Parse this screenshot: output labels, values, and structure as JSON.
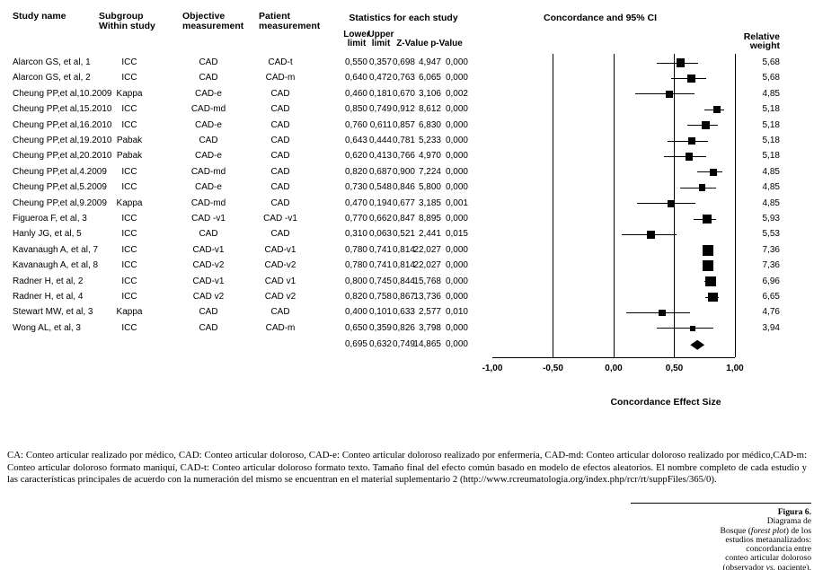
{
  "colors": {
    "ink": "#000000",
    "marker": "#000000",
    "background": "#ffffff"
  },
  "columns": {
    "study": "Study name",
    "subgroup": [
      "Subgroup",
      "Within study"
    ],
    "objective": [
      "Objective",
      "measurement"
    ],
    "patient": [
      "Patient",
      "measurement"
    ],
    "stats_group": "Statistics for each study",
    "weight": [
      "Relative",
      "weight"
    ],
    "stat_headers": [
      {
        "l1": "Lower",
        "l2": "limit"
      },
      {
        "l1": "Upper",
        "l2": "limit"
      },
      {
        "l2": "Z-Value"
      },
      {
        "l2": "p-Value"
      }
    ]
  },
  "chart_data": {
    "type": "forest",
    "title": "Concordance and 95% CI",
    "xlabel": "Concordance Effect Size",
    "xlim": [
      -1.0,
      1.0
    ],
    "xticks": [
      -1.0,
      -0.5,
      0.0,
      0.5,
      1.0
    ],
    "xtick_labels": [
      "-1,00",
      "-0,50",
      "0,00",
      "0,50",
      "1,00"
    ],
    "gridlines": [
      -0.5,
      0.0,
      0.5,
      1.0
    ],
    "grid": true,
    "studies": [
      {
        "name": "Alarcon GS, et al, 1",
        "subgroup": "ICC",
        "objective": "CAD",
        "patient": "CAD-t",
        "point": 0.55,
        "lower": 0.357,
        "upper": 0.698,
        "z": 4.947,
        "p": 0.0,
        "weight": 5.68
      },
      {
        "name": "Alarcon GS, et al, 2",
        "subgroup": "ICC",
        "objective": "CAD",
        "patient": "CAD-m",
        "point": 0.64,
        "lower": 0.472,
        "upper": 0.763,
        "z": 6.065,
        "p": 0.0,
        "weight": 5.68
      },
      {
        "name": "Cheung PP,et al,10.2009",
        "subgroup": "Kappa",
        "objective": "CAD-e",
        "patient": "CAD",
        "point": 0.46,
        "lower": 0.181,
        "upper": 0.67,
        "z": 3.106,
        "p": 0.002,
        "weight": 4.85
      },
      {
        "name": "Cheung PP,et al,15.2010",
        "subgroup": "ICC",
        "objective": "CAD-md",
        "patient": "CAD",
        "point": 0.85,
        "lower": 0.749,
        "upper": 0.912,
        "z": 8.612,
        "p": 0.0,
        "weight": 5.18
      },
      {
        "name": "Cheung PP,et al,16.2010",
        "subgroup": "ICC",
        "objective": "CAD-e",
        "patient": "CAD",
        "point": 0.76,
        "lower": 0.611,
        "upper": 0.857,
        "z": 6.83,
        "p": 0.0,
        "weight": 5.18
      },
      {
        "name": "Cheung PP,et al,19.2010",
        "subgroup": "Pabak",
        "objective": "CAD",
        "patient": "CAD",
        "point": 0.643,
        "lower": 0.444,
        "upper": 0.781,
        "z": 5.233,
        "p": 0.0,
        "weight": 5.18
      },
      {
        "name": "Cheung PP,et al,20.2010",
        "subgroup": "Pabak",
        "objective": "CAD-e",
        "patient": "CAD",
        "point": 0.62,
        "lower": 0.413,
        "upper": 0.766,
        "z": 4.97,
        "p": 0.0,
        "weight": 5.18
      },
      {
        "name": "Cheung PP,et al,4.2009",
        "subgroup": "ICC",
        "objective": "CAD-md",
        "patient": "CAD",
        "point": 0.82,
        "lower": 0.687,
        "upper": 0.9,
        "z": 7.224,
        "p": 0.0,
        "weight": 4.85
      },
      {
        "name": "Cheung PP,et al,5.2009",
        "subgroup": "ICC",
        "objective": "CAD-e",
        "patient": "CAD",
        "point": 0.73,
        "lower": 0.548,
        "upper": 0.846,
        "z": 5.8,
        "p": 0.0,
        "weight": 4.85
      },
      {
        "name": "Cheung PP,et al,9.2009",
        "subgroup": "Kappa",
        "objective": "CAD-md",
        "patient": "CAD",
        "point": 0.47,
        "lower": 0.194,
        "upper": 0.677,
        "z": 3.185,
        "p": 0.001,
        "weight": 4.85
      },
      {
        "name": "Figueroa F, et al, 3",
        "subgroup": "ICC",
        "objective": "CAD -v1",
        "patient": "CAD -v1",
        "point": 0.77,
        "lower": 0.662,
        "upper": 0.847,
        "z": 8.895,
        "p": 0.0,
        "weight": 5.93
      },
      {
        "name": "Hanly JG, et al, 5",
        "subgroup": "ICC",
        "objective": "CAD",
        "patient": "CAD",
        "point": 0.31,
        "lower": 0.063,
        "upper": 0.521,
        "z": 2.441,
        "p": 0.015,
        "weight": 5.53
      },
      {
        "name": "Kavanaugh A, et al, 7",
        "subgroup": "ICC",
        "objective": "CAD-v1",
        "patient": "CAD-v1",
        "point": 0.78,
        "lower": 0.741,
        "upper": 0.814,
        "z": 22.027,
        "p": 0.0,
        "weight": 7.36
      },
      {
        "name": "Kavanaugh A, et al, 8",
        "subgroup": "ICC",
        "objective": "CAD-v2",
        "patient": "CAD-v2",
        "point": 0.78,
        "lower": 0.741,
        "upper": 0.814,
        "z": 22.027,
        "p": 0.0,
        "weight": 7.36
      },
      {
        "name": "Radner H, et al, 2",
        "subgroup": "ICC",
        "objective": "CAD-v1",
        "patient": "CAD v1",
        "point": 0.8,
        "lower": 0.745,
        "upper": 0.844,
        "z": 15.768,
        "p": 0.0,
        "weight": 6.96
      },
      {
        "name": "Radner H, et al, 4",
        "subgroup": "ICC",
        "objective": "CAD v2",
        "patient": "CAD v2",
        "point": 0.82,
        "lower": 0.758,
        "upper": 0.867,
        "z": 13.736,
        "p": 0.0,
        "weight": 6.65
      },
      {
        "name": "Stewart MW, et al, 3",
        "subgroup": "Kappa",
        "objective": "CAD",
        "patient": "CAD",
        "point": 0.4,
        "lower": 0.101,
        "upper": 0.633,
        "z": 2.577,
        "p": 0.01,
        "weight": 4.76
      },
      {
        "name": "Wong AL, et al, 3",
        "subgroup": "ICC",
        "objective": "CAD",
        "patient": "CAD-m",
        "point": 0.65,
        "lower": 0.359,
        "upper": 0.826,
        "z": 3.798,
        "p": 0.0,
        "weight": 3.94
      }
    ],
    "summary": {
      "point": 0.695,
      "lower": 0.632,
      "upper": 0.749,
      "z": 14.865,
      "p": 0.0
    }
  },
  "footnote": "CA: Conteo articular realizado por médico, CAD: Conteo articular doloroso, CAD-e: Conteo articular doloroso realizado por enfermería, CAD-md: Conteo articular doloroso realizado por médico,CAD-m: Conteo articular doloroso formato maniquí, CAD-t: Conteo articular doloroso formato texto. Tamaño final del efecto común basado en modelo de efectos aleatorios. El nombre completo de cada estudio y las características principales de acuerdo con la numeración del mismo se encuentran en el material suplementario 2 (http://www.rcreumatologia.org/index.php/rcr/rt/suppFiles/365/0).",
  "figure": {
    "label": "Figura 6.",
    "caption_lines": [
      "Diagrama de",
      "Bosque (forest plot) de los",
      "estudios metaanalizados:",
      "concordancia entre",
      "conteo articular doloroso",
      "(observador vs. paciente)."
    ],
    "italics": [
      "forest plot",
      "vs."
    ]
  }
}
